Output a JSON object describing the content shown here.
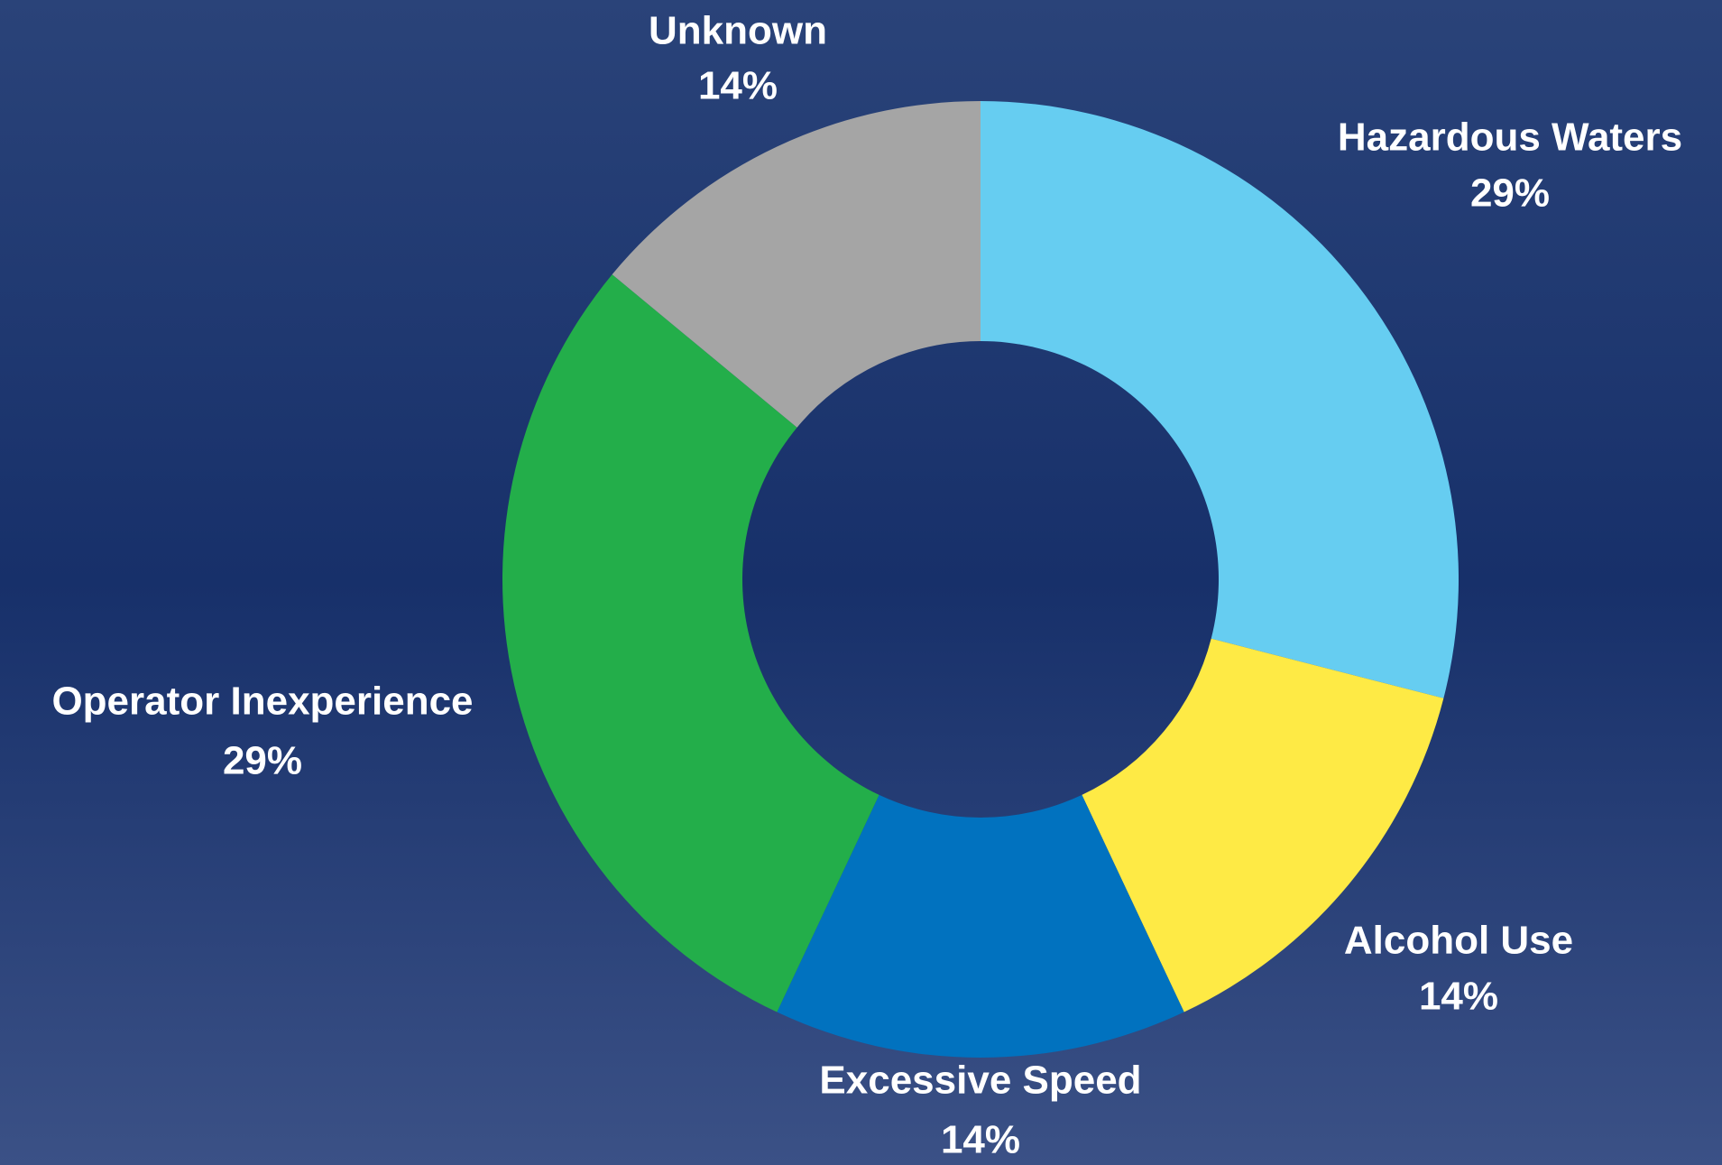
{
  "chart_data": {
    "type": "donut",
    "categories": [
      "Hazardous Waters",
      "Alcohol Use",
      "Excessive Speed",
      "Operator Inexperience",
      "Unknown"
    ],
    "values": [
      29,
      14,
      14,
      29,
      14
    ],
    "value_labels": [
      "29%",
      "14%",
      "14%",
      "29%",
      "14%"
    ],
    "colors": [
      "#66cdf1",
      "#feea45",
      "#0172bf",
      "#23ae4a",
      "#a5a5a5"
    ]
  }
}
